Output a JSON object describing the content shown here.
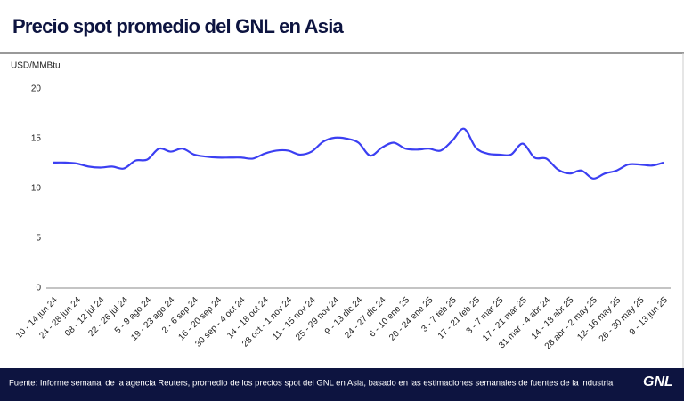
{
  "chart_data": {
    "type": "line",
    "title": "Precio spot promedio del GNL en Asia",
    "y_label": "USD/MMBtu",
    "source": "Fuente: Informe semanal de la agencia Reuters, promedio de los precios spot del GNL en Asia, basado en las estimaciones semanales de fuentes de la industria",
    "logo": "GNL",
    "categories": [
      "10 - 14 jun 24",
      null,
      "24 - 28 jun 24",
      null,
      "08 - 12 jul 24",
      null,
      "22 - 26 jul 24",
      null,
      "5 - 9 ago 24",
      null,
      "19 - 23 ago 24",
      null,
      "2 - 6 sep 24",
      null,
      "16 - 20 sep 24",
      null,
      "30 sep - 4 oct 24",
      null,
      "14 - 18 oct 24",
      null,
      "28 oct - 1 nov 24",
      null,
      "11 - 15 nov 24",
      null,
      "25 - 29 nov 24",
      null,
      "9 - 13 dic 24",
      null,
      "24 - 27 dic 24",
      null,
      "6 - 10 ene 25",
      null,
      "20 - 24 ene 25",
      null,
      "3 - 7 feb 25",
      null,
      "17 - 21 feb 25",
      null,
      "3 - 7 mar 25",
      null,
      "17 - 21 mar 25",
      null,
      "31 mar - 4 abr 24",
      null,
      "14 - 18 abr 25",
      null,
      "28 abr - 2 may 25",
      null,
      "12- 16 may 25",
      null,
      "26 - 30 may 25",
      null,
      "9 - 13 jun 25"
    ],
    "series": [
      {
        "name": "Precio spot",
        "color": "#3b3ff2",
        "values": [
          12.6,
          12.6,
          12.5,
          12.2,
          12.1,
          12.2,
          12.0,
          12.8,
          12.9,
          14.0,
          13.7,
          14.0,
          13.4,
          13.2,
          13.1,
          13.1,
          13.1,
          13.0,
          13.5,
          13.8,
          13.8,
          13.4,
          13.7,
          14.7,
          15.1,
          15.0,
          14.6,
          13.3,
          14.1,
          14.6,
          14.0,
          13.9,
          14.0,
          13.8,
          14.8,
          16.0,
          14.1,
          13.5,
          13.4,
          13.4,
          14.5,
          13.1,
          13.0,
          11.9,
          11.5,
          11.8,
          11.0,
          11.5,
          11.8,
          12.4,
          12.4,
          12.3,
          12.6
        ]
      }
    ],
    "ylim": [
      0,
      20
    ],
    "yticks": [
      0,
      5,
      10,
      15,
      20
    ],
    "grid": false
  }
}
